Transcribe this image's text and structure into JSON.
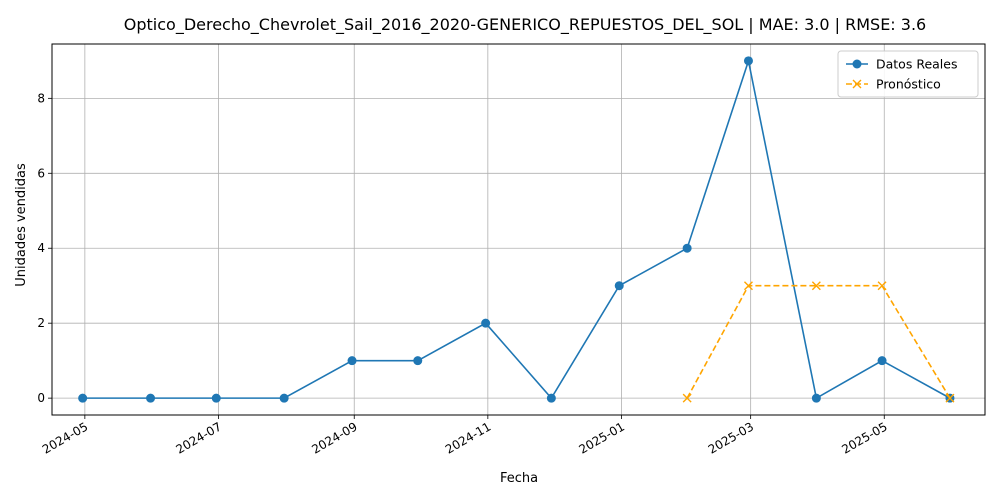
{
  "chart_data": {
    "type": "line",
    "title": "Optico_Derecho_Chevrolet_Sail_2016_2020-GENERICO_REPUESTOS_DEL_SOL | MAE: 3.0 | RMSE: 3.6",
    "xlabel": "Fecha",
    "ylabel": "Unidades vendidas",
    "x_ticks": [
      "2024-05",
      "2024-07",
      "2024-09",
      "2024-11",
      "2025-01",
      "2025-03",
      "2025-05"
    ],
    "y_ticks": [
      0,
      2,
      4,
      6,
      8
    ],
    "ylim": [
      -0.45,
      9.45
    ],
    "xlim": [
      "2024-04-16",
      "2025-06-16"
    ],
    "grid": true,
    "legend_position": "top-right",
    "series": [
      {
        "name": "Datos Reales",
        "color": "#1f77b4",
        "style": "solid",
        "marker": "circle",
        "x": [
          "2024-04-30",
          "2024-05-31",
          "2024-06-30",
          "2024-07-31",
          "2024-08-31",
          "2024-09-30",
          "2024-10-31",
          "2024-11-30",
          "2024-12-31",
          "2025-01-31",
          "2025-02-28",
          "2025-03-31",
          "2025-04-30",
          "2025-05-31"
        ],
        "values": [
          0,
          0,
          0,
          0,
          1,
          1,
          2,
          0,
          3,
          4,
          9,
          0,
          1,
          0
        ]
      },
      {
        "name": "Pronóstico",
        "color": "#ffa500",
        "style": "dashed",
        "marker": "x",
        "x": [
          "2025-01-31",
          "2025-02-28",
          "2025-03-31",
          "2025-04-30",
          "2025-05-31"
        ],
        "values": [
          0,
          3,
          3,
          3,
          0
        ]
      }
    ]
  }
}
